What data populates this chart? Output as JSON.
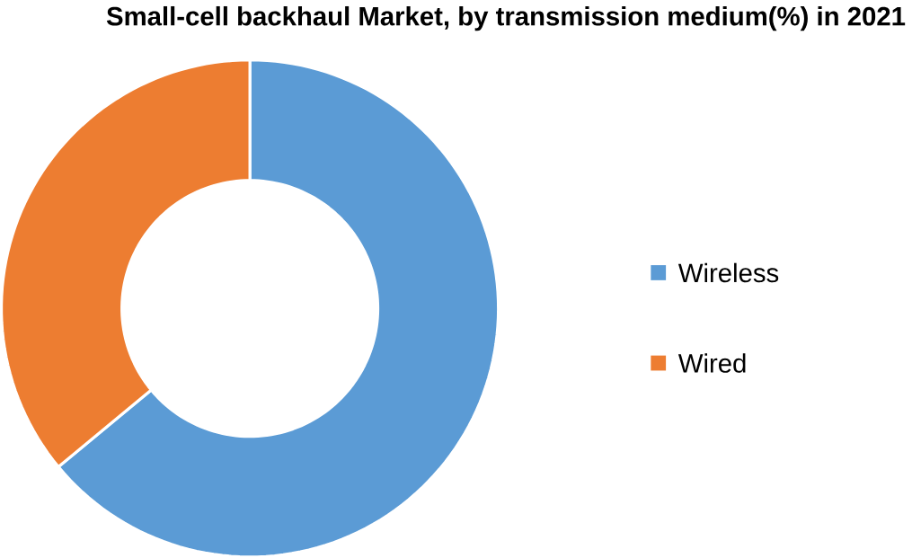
{
  "chart_data": {
    "type": "donut",
    "title": "Small-cell backhaul  Market, by transmission medium(%) in 2021",
    "categories": [
      "Wireless",
      "Wired"
    ],
    "values": [
      64,
      36
    ],
    "colors": [
      "#5b9bd5",
      "#ed7d31"
    ],
    "legend": "right"
  }
}
